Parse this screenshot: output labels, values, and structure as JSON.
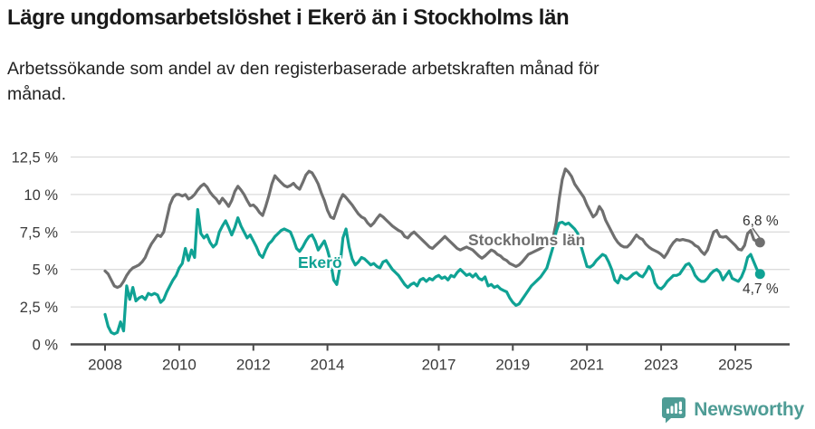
{
  "header": {
    "title": "Lägre ungdomsarbetslöshet i Ekerö än i Stockholms län",
    "subtitle": "Arbetssökande som andel av den registerbaserade arbetskraften månad för månad."
  },
  "chart_data": {
    "type": "line",
    "unit": "%",
    "x_start": {
      "year": 2008,
      "month": 1
    },
    "frequency": "monthly",
    "x_ticks": [
      2008,
      2010,
      2012,
      2014,
      2017,
      2019,
      2021,
      2023,
      2025
    ],
    "y_ticks": {
      "values": [
        0,
        2.5,
        5,
        7.5,
        10,
        12.5
      ],
      "labels": [
        "0 %",
        "2,5 %",
        "5 %",
        "7,5 %",
        "10 %",
        "12,5 %"
      ]
    },
    "ylim": [
      0,
      12.5
    ],
    "grid": "horizontal",
    "series": [
      {
        "name": "Stockholms län",
        "color": "#6F6F6F",
        "end_label": "6,8 %",
        "end_value": 6.8,
        "values": [
          4.9,
          4.7,
          4.3,
          3.9,
          3.8,
          3.9,
          4.2,
          4.6,
          4.9,
          5.1,
          5.2,
          5.3,
          5.5,
          5.8,
          6.3,
          6.7,
          7.0,
          7.3,
          7.2,
          7.5,
          8.4,
          9.3,
          9.8,
          10.0,
          10.0,
          9.9,
          10.0,
          9.7,
          9.8,
          10.0,
          10.3,
          10.55,
          10.7,
          10.5,
          10.15,
          9.9,
          9.7,
          9.4,
          9.75,
          9.5,
          9.2,
          9.6,
          10.2,
          10.55,
          10.3,
          10.0,
          9.6,
          9.25,
          9.3,
          9.1,
          8.8,
          8.6,
          9.2,
          9.9,
          10.7,
          11.25,
          11.0,
          10.8,
          10.6,
          10.5,
          10.6,
          10.75,
          10.5,
          10.35,
          10.8,
          11.3,
          11.55,
          11.45,
          11.1,
          10.7,
          10.1,
          9.6,
          8.95,
          8.5,
          8.4,
          9.0,
          9.6,
          10.0,
          9.8,
          9.55,
          9.3,
          9.0,
          8.7,
          8.5,
          8.4,
          8.1,
          7.9,
          8.1,
          8.4,
          8.65,
          8.5,
          8.3,
          8.1,
          7.9,
          7.75,
          7.6,
          7.5,
          7.2,
          7.1,
          7.35,
          7.5,
          7.3,
          7.1,
          6.9,
          6.7,
          6.5,
          6.4,
          6.6,
          6.8,
          7.0,
          7.2,
          7.0,
          6.8,
          6.6,
          6.4,
          6.3,
          6.4,
          6.5,
          6.4,
          6.3,
          6.1,
          5.9,
          5.75,
          5.9,
          6.1,
          6.3,
          6.2,
          6.0,
          5.9,
          5.7,
          5.6,
          5.4,
          5.3,
          5.2,
          5.3,
          5.5,
          5.75,
          6.0,
          6.1,
          6.2,
          6.3,
          6.4,
          6.55,
          6.7,
          6.9,
          7.1,
          8.1,
          9.7,
          11.0,
          11.7,
          11.5,
          11.2,
          10.7,
          10.4,
          10.1,
          9.8,
          9.3,
          8.9,
          8.5,
          8.7,
          9.2,
          8.9,
          8.3,
          7.9,
          7.5,
          7.1,
          6.8,
          6.6,
          6.5,
          6.5,
          6.7,
          7.0,
          7.3,
          7.1,
          7.0,
          6.7,
          6.5,
          6.35,
          6.25,
          6.15,
          6.0,
          5.8,
          6.1,
          6.5,
          6.8,
          7.0,
          6.95,
          7.0,
          6.95,
          6.9,
          6.8,
          6.6,
          6.5,
          6.2,
          6.0,
          6.3,
          6.9,
          7.5,
          7.6,
          7.2,
          7.15,
          7.2,
          7.0,
          6.8,
          6.6,
          6.35,
          6.3,
          6.6,
          7.4,
          7.6,
          7.0,
          6.85,
          6.8
        ]
      },
      {
        "name": "Ekerö",
        "color": "#0FA294",
        "end_label": "4,7 %",
        "end_value": 4.7,
        "values": [
          2.0,
          1.2,
          0.8,
          0.7,
          0.8,
          1.5,
          0.9,
          3.9,
          3.0,
          3.8,
          2.9,
          3.1,
          3.2,
          3.0,
          3.4,
          3.3,
          3.4,
          3.3,
          2.8,
          3.0,
          3.5,
          3.9,
          4.3,
          4.6,
          5.1,
          5.4,
          6.4,
          5.6,
          6.3,
          5.8,
          9.0,
          7.4,
          7.1,
          7.3,
          6.8,
          6.5,
          6.7,
          7.5,
          7.9,
          8.25,
          7.8,
          7.3,
          7.8,
          8.45,
          7.9,
          7.5,
          7.1,
          7.3,
          6.9,
          6.5,
          6.0,
          5.8,
          6.3,
          6.7,
          6.9,
          7.2,
          7.4,
          7.6,
          7.7,
          7.6,
          7.5,
          7.0,
          6.4,
          6.2,
          6.5,
          6.9,
          7.2,
          7.3,
          6.9,
          6.3,
          6.6,
          6.9,
          6.3,
          5.5,
          4.3,
          4.0,
          5.1,
          7.1,
          7.7,
          6.5,
          5.7,
          5.3,
          5.5,
          5.8,
          5.7,
          5.5,
          5.3,
          5.4,
          5.2,
          5.1,
          5.5,
          5.6,
          5.3,
          5.0,
          4.8,
          4.6,
          4.3,
          4.0,
          3.8,
          4.0,
          4.1,
          3.9,
          4.3,
          4.4,
          4.2,
          4.4,
          4.3,
          4.5,
          4.6,
          4.4,
          4.5,
          4.3,
          4.6,
          4.5,
          4.8,
          5.0,
          4.8,
          4.6,
          4.7,
          4.5,
          4.7,
          4.4,
          4.3,
          4.5,
          3.9,
          4.0,
          3.8,
          3.9,
          3.7,
          3.6,
          3.5,
          3.1,
          2.8,
          2.6,
          2.7,
          3.0,
          3.3,
          3.6,
          3.9,
          4.1,
          4.3,
          4.5,
          4.8,
          5.1,
          5.8,
          6.5,
          7.5,
          8.1,
          8.15,
          8.0,
          8.1,
          7.9,
          7.7,
          7.4,
          6.6,
          5.9,
          5.2,
          5.15,
          5.3,
          5.6,
          5.8,
          6.0,
          5.9,
          5.5,
          5.0,
          4.3,
          4.1,
          4.6,
          4.4,
          4.35,
          4.5,
          4.7,
          4.8,
          4.6,
          4.5,
          4.8,
          5.2,
          4.9,
          4.1,
          3.8,
          3.7,
          3.9,
          4.2,
          4.4,
          4.6,
          4.6,
          4.7,
          5.0,
          5.3,
          5.4,
          5.1,
          4.6,
          4.35,
          4.2,
          4.2,
          4.4,
          4.7,
          4.9,
          5.0,
          4.8,
          4.3,
          4.6,
          4.9,
          4.4,
          4.3,
          4.2,
          4.5,
          5.0,
          5.8,
          6.0,
          5.5,
          5.0,
          4.7
        ]
      }
    ],
    "colors": {
      "axis": "#4a4a4a",
      "gridline": "#dcdcdc",
      "value_label_text": "#333333"
    }
  },
  "footer": {
    "brand": "Newsworthy",
    "logo_color": "#4E9C95"
  }
}
